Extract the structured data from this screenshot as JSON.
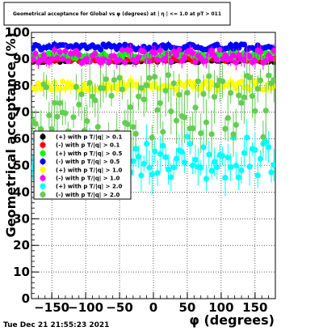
{
  "title": "Geometrical acceptance for Global vs φ (degrees) at | η | <= 1.0 at pT > 011",
  "timestamp": "Tue Dec 21 21:55:23 2021",
  "chart_data": {
    "type": "scatter",
    "title": "Geometrical acceptance for Global vs φ (degrees) at | η | <= 1.0 at pT > 011",
    "xlabel": "φ (degrees)",
    "ylabel": "Geometrical acceptance (%)",
    "xlim": [
      -180,
      180
    ],
    "ylim": [
      0,
      100
    ],
    "x_ticks": [
      -150,
      -100,
      -50,
      0,
      50,
      100,
      150
    ],
    "x_tick_labels": [
      "−150",
      "−100",
      "−50",
      "0",
      "50",
      "100",
      "150"
    ],
    "y_ticks": [
      0,
      10,
      20,
      30,
      40,
      50,
      60,
      70,
      80,
      90,
      100
    ],
    "y_tick_labels": [
      "0",
      "10",
      "20",
      "30",
      "40",
      "50",
      "60",
      "70",
      "80",
      "90",
      "100"
    ],
    "grid": true,
    "legend_position": "left-middle",
    "n_bins": 90,
    "series": [
      {
        "name": "(+) with p T/|q| > 0.1",
        "color": "#000000",
        "mean": 89.5,
        "spread": 0.8,
        "err": 0.8,
        "seed": 11
      },
      {
        "name": "(-) with p T/|q| > 0.1",
        "color": "#ff0000",
        "mean": 90.0,
        "spread": 0.8,
        "err": 0.8,
        "seed": 23
      },
      {
        "name": "(+) with p T/|q| > 0.5",
        "color": "#00ff00",
        "mean": 91.5,
        "spread": 1.2,
        "err": 1.0,
        "seed": 37
      },
      {
        "name": "(-) with p T/|q| > 0.5",
        "color": "#0000ff",
        "mean": 94.5,
        "spread": 1.0,
        "err": 1.0,
        "seed": 41
      },
      {
        "name": "(+) with p T/|q| > 1.0",
        "color": "#ffff00",
        "mean": 80.0,
        "spread": 1.8,
        "err": 2.0,
        "seed": 53
      },
      {
        "name": "(-) with p T/|q| > 1.0",
        "color": "#ff00ff",
        "mean": 91.0,
        "spread": 2.5,
        "err": 2.0,
        "seed": 67
      },
      {
        "name": "(+) with p T/|q| > 2.0",
        "color": "#00ffff",
        "mean": 53.0,
        "spread": 8.0,
        "err": 5.0,
        "seed": 79
      },
      {
        "name": "(-) with p T/|q| > 2.0",
        "color": "#66cc55",
        "mean": 72.0,
        "spread": 12.0,
        "err": 7.0,
        "seed": 97
      }
    ]
  }
}
